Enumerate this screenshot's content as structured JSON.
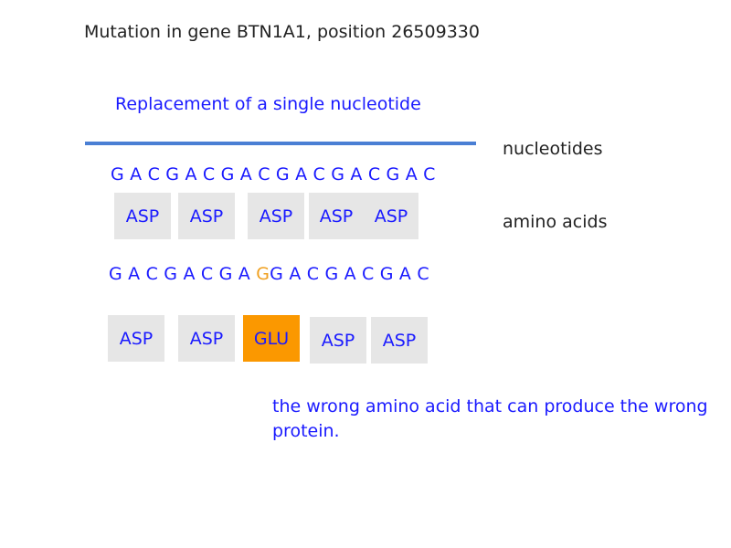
{
  "title": "Mutation in gene BTN1A1, position 26509330",
  "subtitle": "Replacement of a single nucleotide",
  "labels": {
    "nucleotides": "nucleotides",
    "amino_acids": "amino acids"
  },
  "sequence_original": "G A C G A C G A C G A C G A C G A C",
  "sequence_mutated": {
    "before": "G A C G A C G A ",
    "mutated": "G",
    "after": "G A C G A C G A C"
  },
  "amino_acids_original": [
    "ASP",
    "ASP",
    "ASP",
    "ASP",
    "ASP"
  ],
  "amino_acids_mutated": [
    "ASP",
    "ASP",
    "GLU",
    "ASP",
    "ASP"
  ],
  "note": "the wrong amino acid that can produce the wrong protein.",
  "colors": {
    "text_blue": "#1a1aff",
    "mutation": "#f0a020",
    "highlight_box": "#fb9800",
    "box": "#e6e6e6",
    "rule": "#4a7fd4"
  }
}
